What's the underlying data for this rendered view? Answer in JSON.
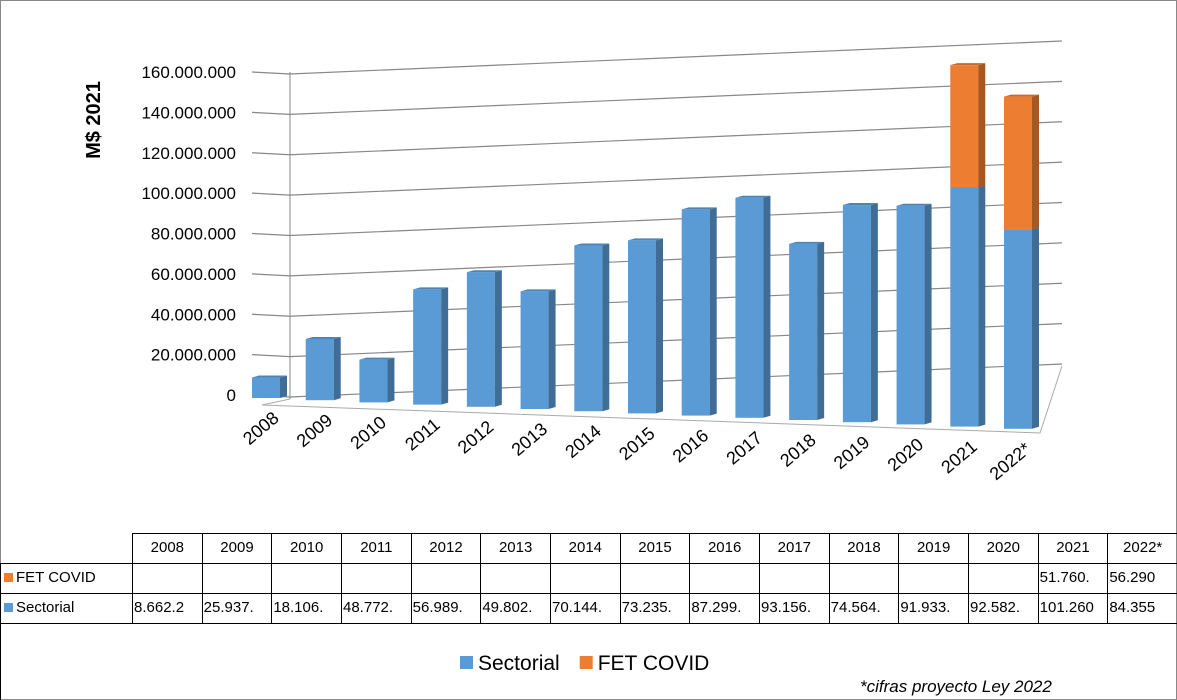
{
  "chart_data": {
    "type": "bar",
    "stacked": true,
    "ylabel": "M$ 2021",
    "categories": [
      "2008",
      "2009",
      "2010",
      "2011",
      "2012",
      "2013",
      "2014",
      "2015",
      "2016",
      "2017",
      "2018",
      "2019",
      "2020",
      "2021",
      "2022*"
    ],
    "series": [
      {
        "name": "Sectorial",
        "color": "#5b9bd5",
        "values": [
          8662200,
          25937000,
          18106000,
          48772000,
          56989000,
          49802000,
          70144000,
          73235000,
          87299000,
          93156000,
          74564000,
          91933000,
          92582000,
          101260000,
          84355000
        ],
        "value_labels": [
          "8.662.2",
          "25.937.",
          "18.106.",
          "48.772.",
          "56.989.",
          "49.802.",
          "70.144.",
          "73.235.",
          "87.299.",
          "93.156.",
          "74.564.",
          "91.933.",
          "92.582.",
          "101.260",
          "84.355"
        ]
      },
      {
        "name": "FET COVID",
        "color": "#ed7d31",
        "values": [
          null,
          null,
          null,
          null,
          null,
          null,
          null,
          null,
          null,
          null,
          null,
          null,
          null,
          51760000,
          56290000
        ],
        "value_labels": [
          null,
          null,
          null,
          null,
          null,
          null,
          null,
          null,
          null,
          null,
          null,
          null,
          null,
          "51.760.",
          "56.290"
        ]
      }
    ],
    "ylim": [
      0,
      160000000
    ],
    "yticks": [
      0,
      {
        "value": 20000000,
        "label": "20.000.000"
      },
      {
        "value": 40000000,
        "label": "40.000.000"
      },
      {
        "value": 60000000,
        "label": "60.000.000"
      },
      {
        "value": 80000000,
        "label": "80.000.000"
      },
      {
        "value": 100000000,
        "label": "100.000.000"
      },
      {
        "value": 120000000,
        "label": "120.000.000"
      },
      {
        "value": 140000000,
        "label": "140.000.000"
      },
      {
        "value": 160000000,
        "label": "160.000.000"
      }
    ],
    "grid": true,
    "legend": "bottom",
    "footnote": "*cifras proyecto Ley 2022"
  }
}
